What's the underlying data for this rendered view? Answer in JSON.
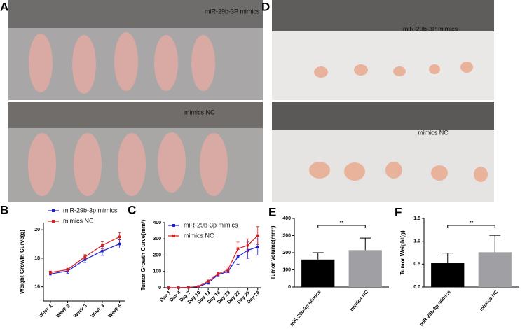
{
  "panels": {
    "A": {
      "label": "A",
      "top_caption": "miR-29b-3P mimics",
      "bottom_caption": "mimics NC"
    },
    "D": {
      "label": "D",
      "top_caption": "miR-29b-3P mimics",
      "bottom_caption": "mimics NC"
    }
  },
  "chart_data": [
    {
      "type": "line",
      "label": "B",
      "y_label": "Weight Growth Curve(g)",
      "categories": [
        "Week 1",
        "Week 2",
        "Week 3",
        "Week 4",
        "Week 5"
      ],
      "series": [
        {
          "name": "miR-29b-3p mimics",
          "color": "#1f1fd6",
          "values": [
            16.9,
            17.1,
            17.9,
            18.5,
            19.0
          ],
          "errors": [
            0.15,
            0.15,
            0.2,
            0.3,
            0.3
          ]
        },
        {
          "name": "mimics NC",
          "color": "#d61f1f",
          "values": [
            17.0,
            17.2,
            18.1,
            18.9,
            19.5
          ],
          "errors": [
            0.1,
            0.1,
            0.15,
            0.25,
            0.3
          ]
        }
      ],
      "ylim": [
        15,
        20.5
      ],
      "yticks": [
        16,
        18,
        20
      ],
      "legend": "upper left"
    },
    {
      "type": "line",
      "label": "C",
      "y_label": "Tumor Growth Curve(mm³)",
      "categories": [
        "Day 1",
        "Day 4",
        "Day 7",
        "Day 10",
        "Day 13",
        "Day 16",
        "Day 19",
        "Day 22",
        "Day 25",
        "Day 28"
      ],
      "series": [
        {
          "name": "miR-29b-3p mimics",
          "color": "#1f1fd6",
          "values": [
            0,
            0,
            2,
            5,
            30,
            80,
            100,
            190,
            230,
            250
          ],
          "errors": [
            0,
            0,
            1,
            2,
            8,
            12,
            15,
            45,
            50,
            50
          ]
        },
        {
          "name": "mimics NC",
          "color": "#d61f1f",
          "values": [
            0,
            0,
            2,
            8,
            40,
            85,
            110,
            240,
            260,
            320
          ],
          "errors": [
            0,
            0,
            1,
            3,
            8,
            12,
            18,
            40,
            40,
            55
          ]
        }
      ],
      "ylim": [
        0,
        400
      ],
      "yticks": [
        0,
        100,
        200,
        300,
        400
      ],
      "legend": "upper left"
    },
    {
      "type": "bar",
      "label": "E",
      "y_label": "Tumor Volume(mm³)",
      "categories": [
        "miR-29b-3p mimics",
        "mimics NC"
      ],
      "values": [
        160,
        215
      ],
      "errors": [
        40,
        70
      ],
      "colors": [
        "#000000",
        "#a0a0a4"
      ],
      "significance": "**",
      "ylim": [
        0,
        400
      ],
      "yticks": [
        0,
        100,
        200,
        300,
        400
      ]
    },
    {
      "type": "bar",
      "label": "F",
      "y_label": "Tumor Weight(g)",
      "categories": [
        "miR-29b-3p mimics",
        "mimics NC"
      ],
      "values": [
        0.52,
        0.76
      ],
      "errors": [
        0.22,
        0.37
      ],
      "colors": [
        "#000000",
        "#a0a0a4"
      ],
      "significance": "**",
      "ylim": [
        0,
        1.5
      ],
      "yticks": [
        {
          "value": 0,
          "label": "0.0"
        },
        {
          "value": 0.5,
          "label": "0.5"
        },
        {
          "value": 1,
          "label": "1.0"
        },
        {
          "value": 1.5,
          "label": "1.5"
        }
      ]
    }
  ]
}
